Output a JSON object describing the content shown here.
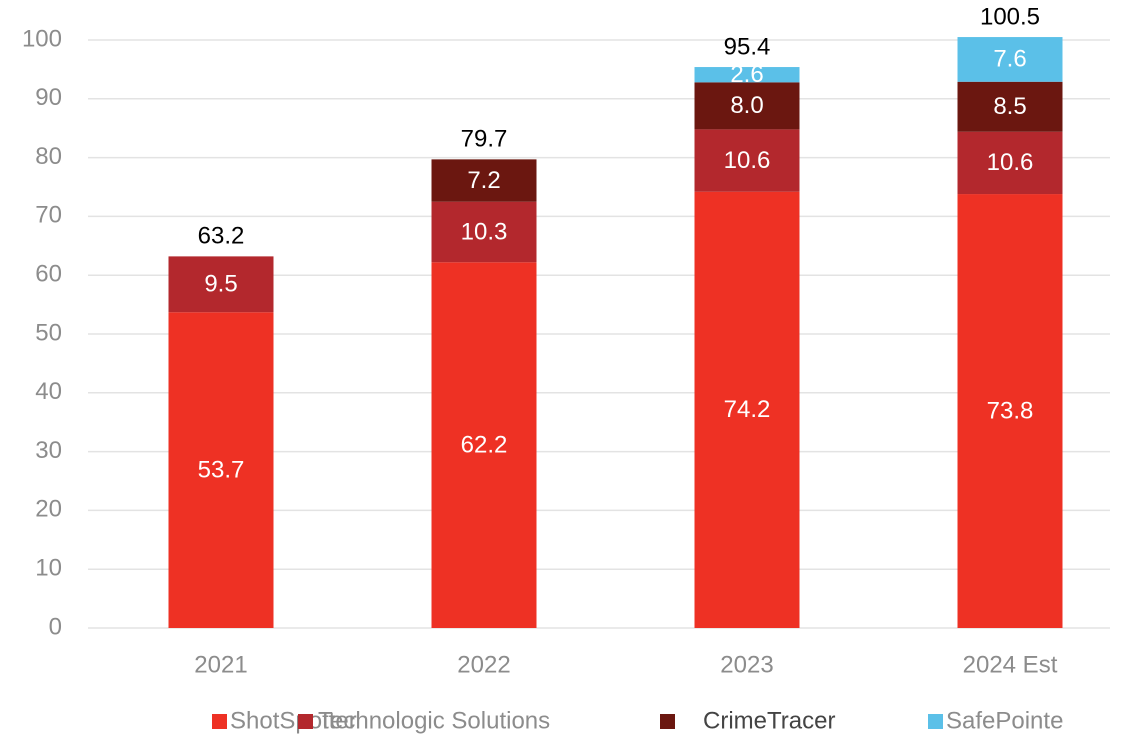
{
  "chart_data": {
    "type": "stacked_bar",
    "categories": [
      "2021",
      "2022",
      "2023",
      "2024 Est"
    ],
    "series": [
      {
        "name": "ShotSpotter",
        "color": "#ee3124",
        "values": [
          53.7,
          62.2,
          74.2,
          73.8
        ]
      },
      {
        "name": "Technologic Solutions",
        "color": "#b3282d",
        "values": [
          9.5,
          10.3,
          10.6,
          10.6
        ]
      },
      {
        "name": "CrimeTracer",
        "color": "#6b1710",
        "values": [
          null,
          7.2,
          8.0,
          8.5
        ],
        "value_labels": [
          null,
          "7.2",
          "8.0",
          "8.5"
        ]
      },
      {
        "name": "SafePointe",
        "color": "#5bc0e8",
        "values": [
          null,
          null,
          2.6,
          7.6
        ]
      }
    ],
    "totals": [
      63.2,
      79.7,
      95.4,
      100.5
    ],
    "ylim": [
      0,
      100
    ],
    "yticks": [
      0,
      10,
      20,
      30,
      40,
      50,
      60,
      70,
      80,
      90,
      100
    ],
    "grid": true,
    "legend": "bottom"
  }
}
